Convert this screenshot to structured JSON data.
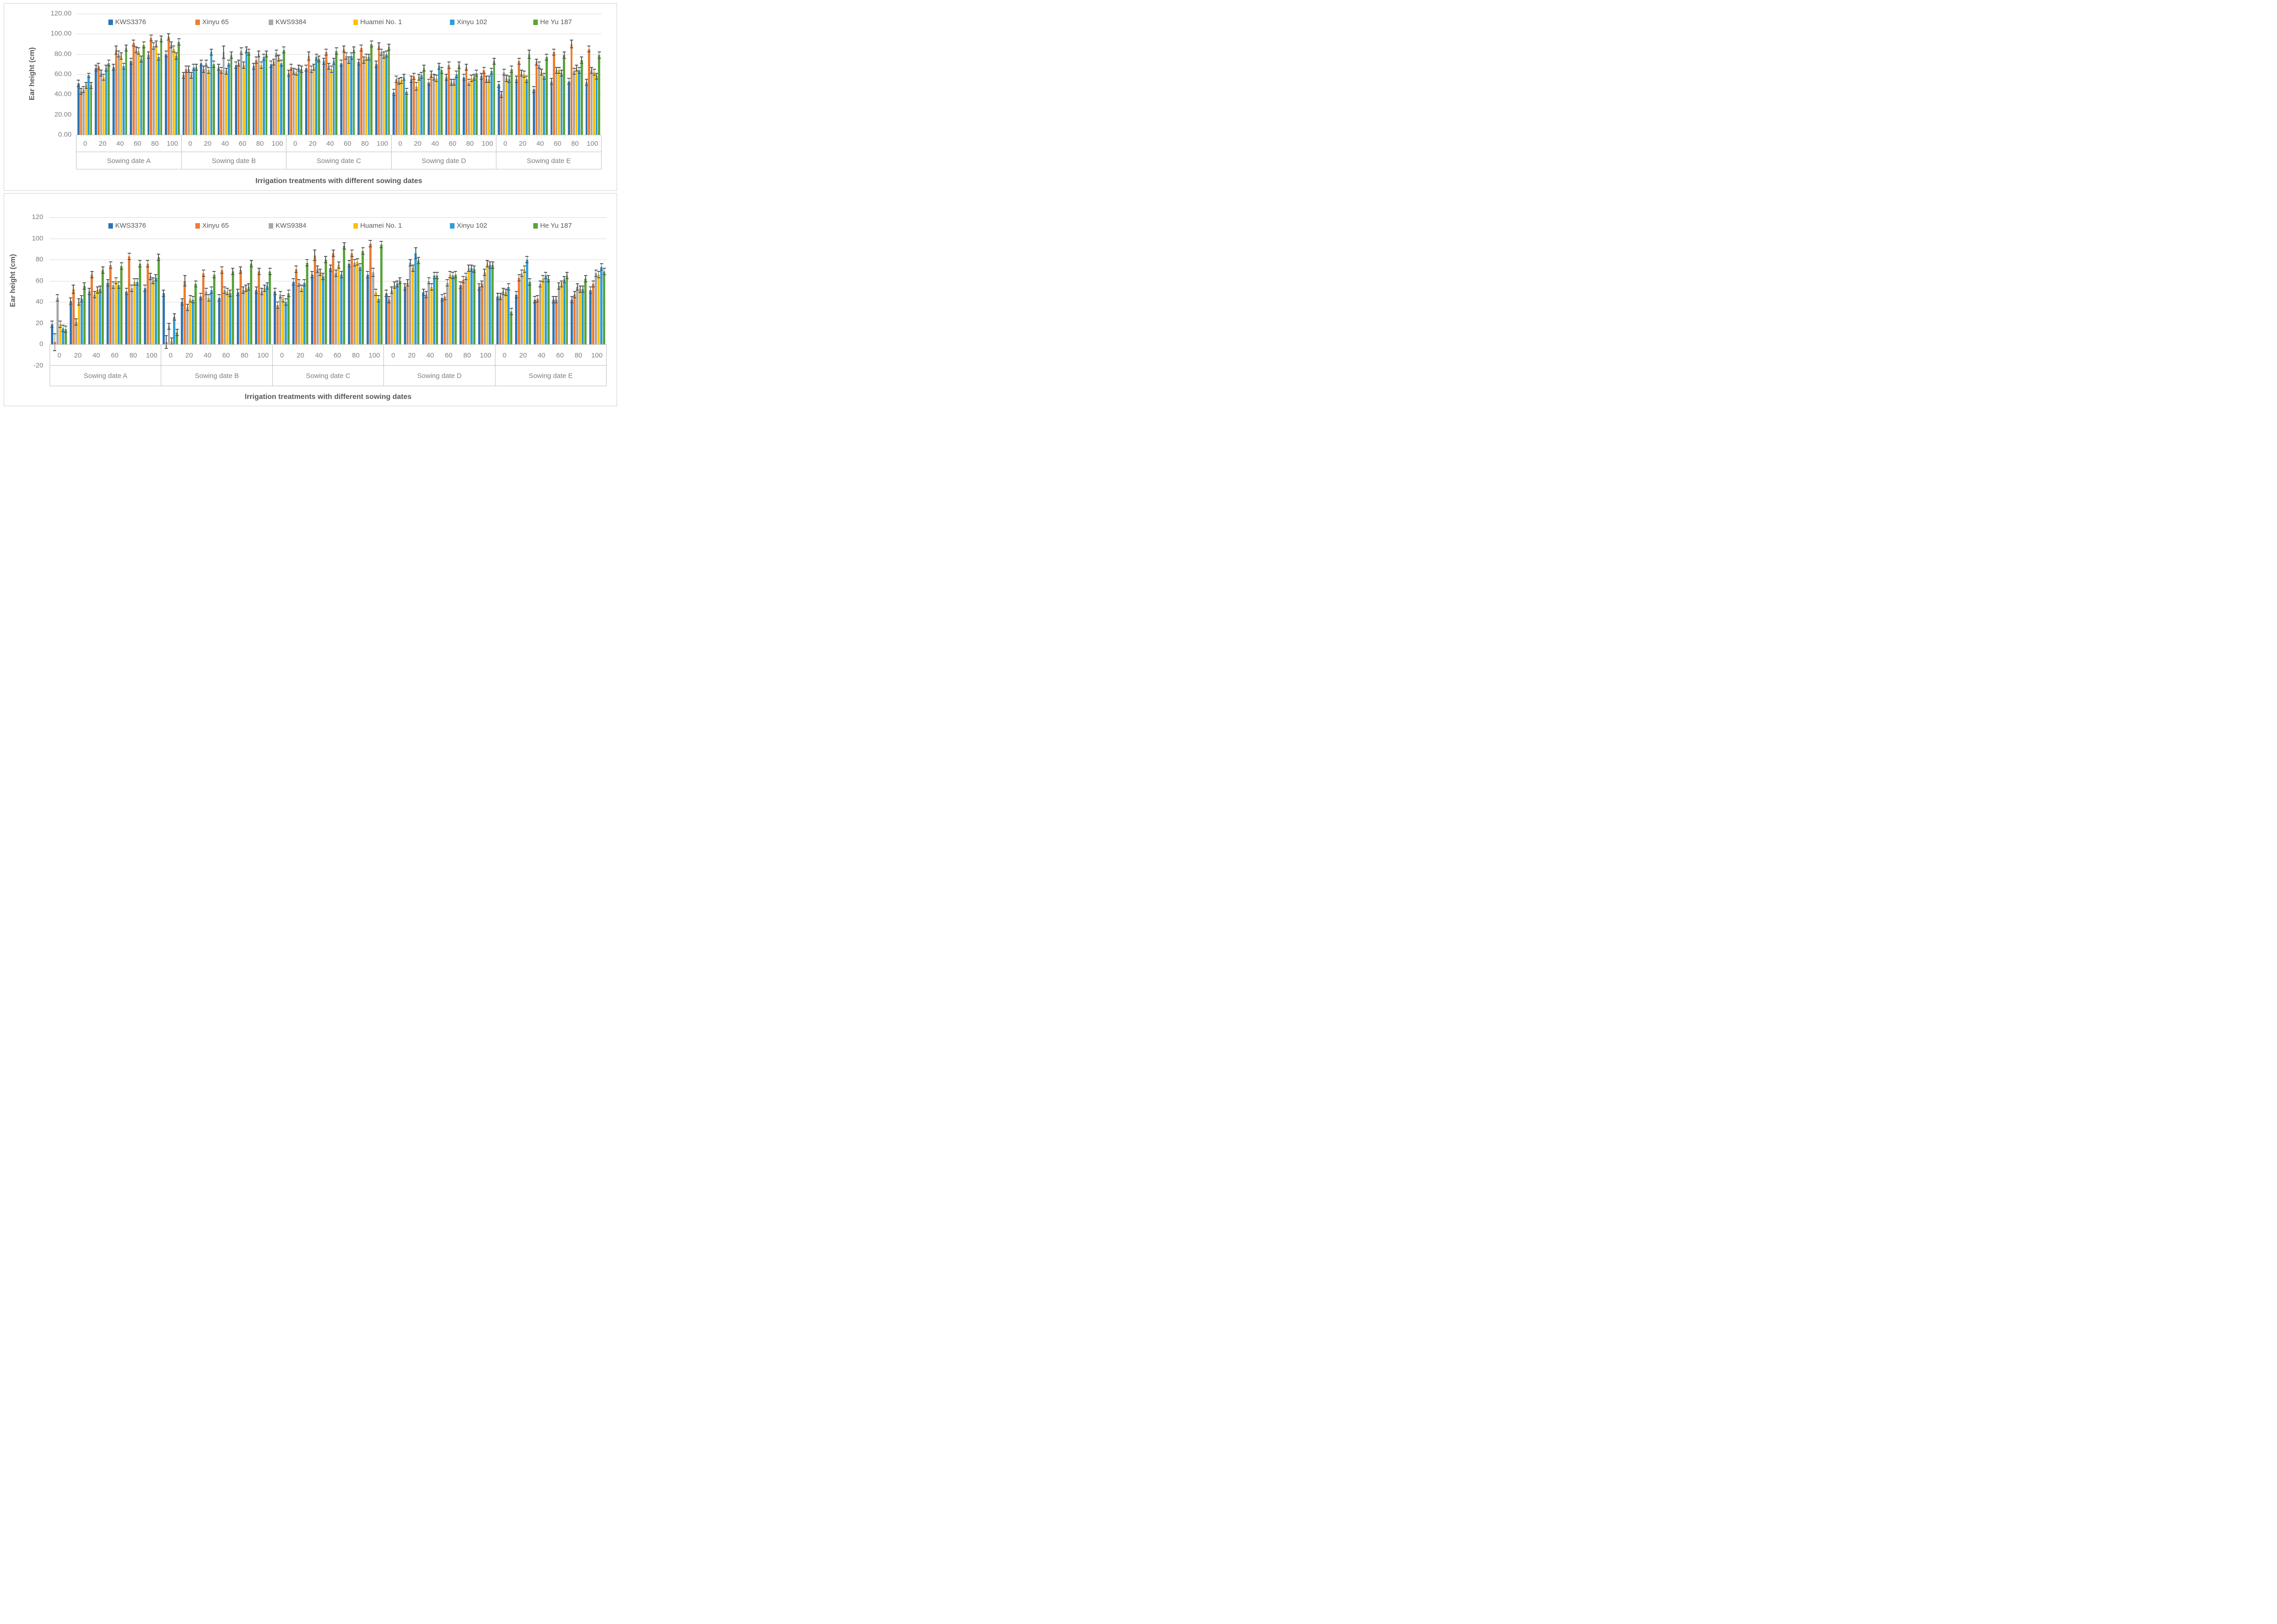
{
  "figure": {
    "background": "#ffffff"
  },
  "error_bar_color": "#595959",
  "chart_data": [
    {
      "id": "top",
      "type": "bar",
      "title": "",
      "ylabel": "Ear height (cm)",
      "xlabel": "Irrigation treatments with different sowing dates",
      "ylim": [
        0,
        120
      ],
      "tick_step": 20,
      "grid": true,
      "legend_position": "top",
      "y_ticks": [
        "120.00",
        "100.00",
        "80.00",
        "60.00",
        "40.00",
        "20.00",
        "0.00"
      ],
      "levels": [
        "0",
        "20",
        "40",
        "60",
        "80",
        "100"
      ],
      "groups": [
        "Sowing date A",
        "Sowing date B",
        "Sowing date C",
        "Sowing date D",
        "Sowing date E"
      ],
      "series": [
        {
          "name": "KWS3376",
          "color": "#2E75B6",
          "values": [
            [
              51,
              66,
              67,
              73,
              79,
              80
            ],
            [
              59,
              71,
              67,
              69,
              68,
              70
            ],
            [
              61,
              66,
              73,
              71,
              72,
              70
            ],
            [
              42,
              55,
              52,
              57,
              57,
              58
            ],
            [
              50,
              55,
              45,
              53,
              53,
              52
            ]
          ]
        },
        {
          "name": "Xinyu 65",
          "color": "#ED7D31",
          "values": [
            [
              43,
              68,
              84,
              91,
              96,
              97
            ],
            [
              65,
              65,
              64,
              71,
              74,
              72
            ],
            [
              67,
              78,
              82,
              85,
              86,
              88
            ],
            [
              55,
              58,
              60,
              69,
              67,
              64
            ],
            [
              40,
              73,
              72,
              82,
              90,
              85
            ]
          ]
        },
        {
          "name": "KWS9384",
          "color": "#A9A9A9",
          "values": [
            [
              45,
              61,
              80,
              84,
              88,
              89
            ],
            [
              65,
              71,
              82,
              83,
              80,
              81
            ],
            [
              63,
              65,
              68,
              78,
              74,
              82
            ],
            [
              53,
              48,
              57,
              52,
              52,
              55
            ],
            [
              62,
              61,
              69,
              64,
              63,
              64
            ]
          ]
        },
        {
          "name": "Huamei No. 1",
          "color": "#FFC000",
          "values": [
            [
              49,
              57,
              78,
              83,
              90,
              85
            ],
            [
              59,
              64,
              63,
              69,
              69,
              76
            ],
            [
              62,
              67,
              65,
              74,
              77,
              79
            ],
            [
              54,
              57,
              56,
              52,
              56,
              55
            ],
            [
              56,
              60,
              62,
              64,
              66,
              62
            ]
          ]
        },
        {
          "name": "Xinyu 102",
          "color": "#2E9FDA",
          "values": [
            [
              59,
              66,
              68,
              75,
              77,
              78
            ],
            [
              67,
              82,
              71,
              84,
              77,
              71
            ],
            [
              66,
              77,
              73,
              78,
              77,
              80
            ],
            [
              57,
              59,
              68,
              60,
              57,
              63
            ],
            [
              55,
              55,
              58,
              61,
              64,
              58
            ]
          ]
        },
        {
          "name": "He Yu 187",
          "color": "#5AA43A",
          "values": [
            [
              49,
              71,
              86,
              89,
              95,
              92
            ],
            [
              67,
              70,
              79,
              82,
              80,
              84
            ],
            [
              65,
              75,
              83,
              84,
              90,
              87
            ],
            [
              43,
              66,
              64,
              69,
              61,
              73
            ],
            [
              65,
              80,
              77,
              79,
              74,
              79
            ]
          ]
        }
      ],
      "error_default": 3,
      "error_overrides": [
        {
          "group": 0,
          "level": 0,
          "series": 4,
          "err": 2
        },
        {
          "group": 0,
          "level": 2,
          "series": 1,
          "err": 4
        },
        {
          "group": 1,
          "level": 2,
          "series": 2,
          "err": 6
        },
        {
          "group": 2,
          "level": 1,
          "series": 1,
          "err": 4
        },
        {
          "group": 3,
          "level": 1,
          "series": 2,
          "err": 4
        },
        {
          "group": 4,
          "level": 1,
          "series": 5,
          "err": 4
        },
        {
          "group": 4,
          "level": 4,
          "series": 1,
          "err": 4
        }
      ]
    },
    {
      "id": "bottom",
      "type": "bar",
      "title": "",
      "ylabel": "Ear height (cm)",
      "xlabel": "Irrigation treatments with different sowing dates",
      "ylim": [
        -20,
        120
      ],
      "tick_step": 20,
      "grid": true,
      "legend_position": "top",
      "y_ticks": [
        "120",
        "100",
        "80",
        "60",
        "40",
        "20",
        "0",
        "-20"
      ],
      "levels": [
        "0",
        "20",
        "40",
        "60",
        "80",
        "100"
      ],
      "groups": [
        "Sowing date A",
        "Sowing date B",
        "Sowing date C",
        "Sowing date D",
        "Sowing date E"
      ],
      "series": [
        {
          "name": "KWS3376",
          "color": "#2E75B6",
          "values": [
            [
              19,
              41,
              50,
              58,
              50,
              53
            ],
            [
              48,
              40,
              45,
              44,
              49,
              51
            ],
            [
              50,
              59,
              66,
              72,
              76,
              66
            ],
            [
              48,
              54,
              49,
              44,
              56,
              54
            ],
            [
              45,
              47,
              42,
              42,
              42,
              51
            ]
          ]
        },
        {
          "name": "Xinyu 65",
          "color": "#ED7D31",
          "values": [
            [
              2,
              52,
              66,
              75,
              83,
              76
            ],
            [
              2,
              60,
              67,
              70,
              70,
              69
            ],
            [
              37,
              71,
              84,
              86,
              86,
              95
            ],
            [
              42,
              58,
              47,
              45,
              61,
              57
            ],
            [
              45,
              63,
              43,
              42,
              47,
              57
            ]
          ]
        },
        {
          "name": "KWS9384",
          "color": "#A9A9A9",
          "values": [
            [
              44,
              21,
              47,
              56,
              53,
              64
            ],
            [
              17,
              35,
              50,
              51,
              51,
              50
            ],
            [
              47,
              58,
              71,
              67,
              77,
              68
            ],
            [
              51,
              77,
              60,
              58,
              64,
              68
            ],
            [
              50,
              67,
              57,
              55,
              54,
              67
            ]
          ]
        },
        {
          "name": "Huamei No. 1",
          "color": "#FFC000",
          "values": [
            [
              19,
              40,
              51,
              60,
              59,
              60
            ],
            [
              3,
              43,
              44,
              50,
              53,
              53
            ],
            [
              43,
              53,
              68,
              75,
              78,
              49
            ],
            [
              56,
              72,
              54,
              66,
              72,
              76
            ],
            [
              49,
              71,
              62,
              57,
              52,
              66
            ]
          ]
        },
        {
          "name": "Xinyu 102",
          "color": "#2E9FDA",
          "values": [
            [
              15,
              43,
              52,
              56,
              59,
              63
            ],
            [
              26,
              42,
              51,
              48,
              54,
              55
            ],
            [
              40,
              58,
              64,
              66,
              73,
              43
            ],
            [
              57,
              86,
              65,
              65,
              72,
              75
            ],
            [
              54,
              80,
              65,
              61,
              52,
              73
            ]
          ]
        },
        {
          "name": "He Yu 187",
          "color": "#5AA43A",
          "values": [
            [
              14,
              55,
              70,
              74,
              76,
              82
            ],
            [
              11,
              57,
              66,
              69,
              76,
              69
            ],
            [
              48,
              77,
              80,
              93,
              88,
              94
            ],
            [
              60,
              79,
              65,
              66,
              71,
              75
            ],
            [
              31,
              59,
              62,
              65,
              62,
              69
            ]
          ]
        }
      ],
      "error_default": 3,
      "error_overrides": [
        {
          "group": 0,
          "level": 0,
          "series": 1,
          "err": 8
        },
        {
          "group": 0,
          "level": 0,
          "series": 2,
          "err": 3
        },
        {
          "group": 0,
          "level": 1,
          "series": 1,
          "err": 4
        },
        {
          "group": 1,
          "level": 0,
          "series": 1,
          "err": 6
        },
        {
          "group": 1,
          "level": 1,
          "series": 1,
          "err": 5
        },
        {
          "group": 2,
          "level": 2,
          "series": 1,
          "err": 5
        },
        {
          "group": 2,
          "level": 5,
          "series": 2,
          "err": 4
        },
        {
          "group": 3,
          "level": 1,
          "series": 4,
          "err": 5
        },
        {
          "group": 4,
          "level": 0,
          "series": 5,
          "err": 3
        }
      ]
    }
  ]
}
